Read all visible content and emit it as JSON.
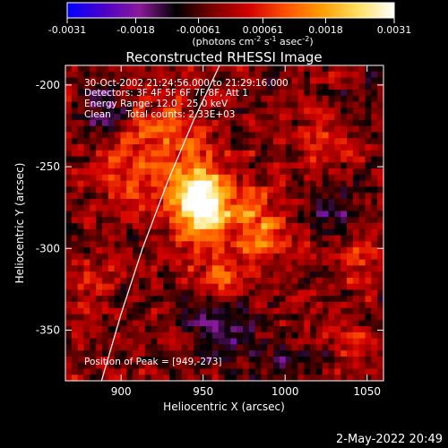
{
  "colorbar": {
    "min_label": "-0.0031",
    "tick_labels": [
      "-0.0031",
      "-0.0018",
      "-0.00061",
      "0.00061",
      "0.0018",
      "0.0031"
    ],
    "units_main": "(photons cm",
    "units_sup1": "-2",
    "units_mid1": " s",
    "units_sup2": "-1",
    "units_mid2": " asec",
    "units_sup3": "-2",
    "units_end": ")",
    "colormap": [
      "#0000ff",
      "#4b00c8",
      "#8a1a9a",
      "#000000",
      "#7a0000",
      "#d20000",
      "#ff5000",
      "#ff9c00",
      "#ffe060",
      "#ffffff"
    ]
  },
  "image": {
    "title": "Reconstructed RHESSI Image",
    "xlabel": "Heliocentric X (arcsec)",
    "ylabel": "Heliocentric Y (arcsec)",
    "x_ticks": [
      "900",
      "950",
      "1000",
      "1050"
    ],
    "y_ticks": [
      "-200",
      "-250",
      "-300",
      "-350"
    ],
    "annotation_lines": [
      "30-Oct-2002 21:24:56.000 to 21:29:16.000",
      "Detectors: 3F 4F 5F 6F 7F 8F, Att 1",
      "Energy Range: 12.0 - 25.0 keV",
      "Clean     Total counts: 2.33E+03"
    ],
    "peak_label": "Position of Peak = [949,-273]"
  },
  "footer": {
    "timestamp": "2-May-2022 20:49"
  },
  "chart_data": {
    "type": "heatmap",
    "title": "Reconstructed RHESSI Image",
    "xlabel": "Heliocentric X (arcsec)",
    "ylabel": "Heliocentric Y (arcsec)",
    "xlim": [
      866,
      1060
    ],
    "ylim": [
      -381,
      -188
    ],
    "x_ticks": [
      900,
      950,
      1000,
      1050
    ],
    "y_ticks": [
      -200,
      -250,
      -300,
      -350
    ],
    "colorbar_range": [
      -0.0031,
      0.0031
    ],
    "colorbar_ticks": [
      -0.0031,
      -0.0018,
      -0.00061,
      0.00061,
      0.0018,
      0.0031
    ],
    "peak_position": [
      949,
      -273
    ],
    "total_counts": 2330,
    "energy_range_kev": [
      12.0,
      25.0
    ],
    "limb_curve": [
      [
        888,
        -381
      ],
      [
        900,
        -340
      ],
      [
        913,
        -300
      ],
      [
        928,
        -260
      ],
      [
        944,
        -222
      ],
      [
        960,
        -188
      ]
    ],
    "sources": [
      {
        "x": 949,
        "y": -273,
        "amp": 0.0031,
        "sx": 9,
        "sy": 13
      },
      {
        "x": 940,
        "y": -258,
        "amp": 0.0017,
        "sx": 16,
        "sy": 18
      },
      {
        "x": 975,
        "y": -280,
        "amp": 0.0014,
        "sx": 14,
        "sy": 12
      },
      {
        "x": 990,
        "y": -295,
        "amp": 0.0012,
        "sx": 10,
        "sy": 10
      },
      {
        "x": 925,
        "y": -225,
        "amp": 0.0011,
        "sx": 12,
        "sy": 10
      },
      {
        "x": 905,
        "y": -250,
        "amp": 0.001,
        "sx": 10,
        "sy": 14
      },
      {
        "x": 960,
        "y": -315,
        "amp": 0.0011,
        "sx": 12,
        "sy": 10
      },
      {
        "x": 1025,
        "y": -240,
        "amp": 0.0009,
        "sx": 12,
        "sy": 10
      },
      {
        "x": 1045,
        "y": -300,
        "amp": 0.0009,
        "sx": 9,
        "sy": 12
      },
      {
        "x": 880,
        "y": -330,
        "amp": 0.0007,
        "sx": 9,
        "sy": 12
      },
      {
        "x": 1040,
        "y": -360,
        "amp": 0.0007,
        "sx": 9,
        "sy": 9
      },
      {
        "x": 960,
        "y": -350,
        "amp": -0.0012,
        "sx": 16,
        "sy": 12
      },
      {
        "x": 1030,
        "y": -280,
        "amp": -0.001,
        "sx": 12,
        "sy": 12
      },
      {
        "x": 890,
        "y": -215,
        "amp": -0.0009,
        "sx": 10,
        "sy": 10
      },
      {
        "x": 1000,
        "y": -370,
        "amp": -0.0008,
        "sx": 14,
        "sy": 8
      },
      {
        "x": 1050,
        "y": -205,
        "amp": -0.0007,
        "sx": 10,
        "sy": 8
      }
    ]
  }
}
